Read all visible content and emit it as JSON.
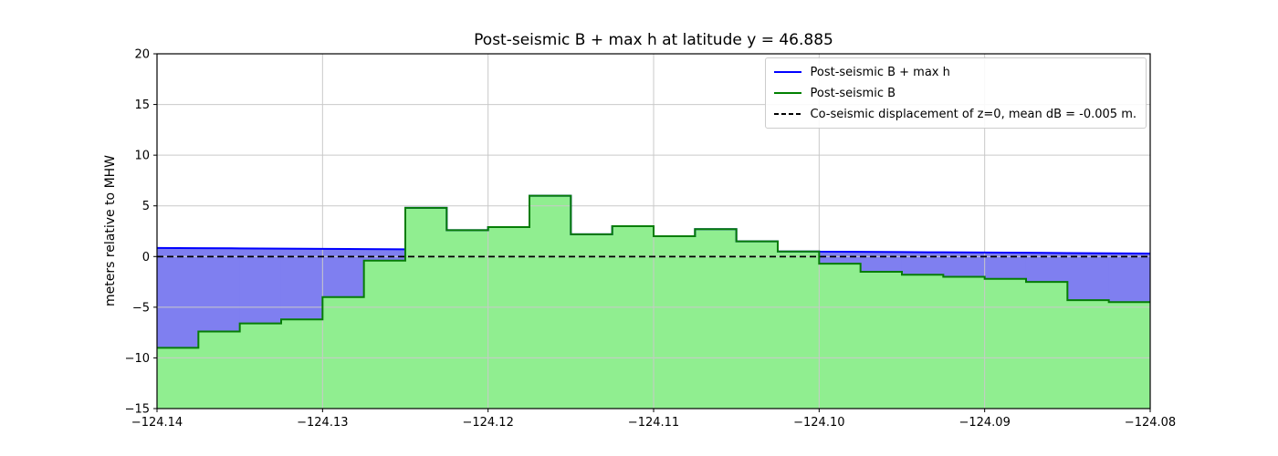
{
  "figure": {
    "background": "#ffffff"
  },
  "chart_data": {
    "type": "area",
    "title": "Post-seismic B + max h at latitude y = 46.885",
    "xlabel": "",
    "ylabel": "meters relative to MHW",
    "xlim": [
      -124.14,
      -124.08
    ],
    "ylim": [
      -15,
      20
    ],
    "grid": true,
    "grid_color": "#c9c9c9",
    "xtick_values": [
      -124.14,
      -124.13,
      -124.12,
      -124.11,
      -124.1,
      -124.09,
      -124.08
    ],
    "xtick_labels": [
      "−124.14",
      "−124.13",
      "−124.12",
      "−124.11",
      "−124.10",
      "−124.09",
      "−124.08"
    ],
    "ytick_values": [
      -15,
      -10,
      -5,
      0,
      5,
      10,
      15,
      20
    ],
    "ytick_labels": [
      "−15",
      "−10",
      "−5",
      "0",
      "5",
      "10",
      "15",
      "20"
    ],
    "legend": {
      "position": "upper right",
      "entries": [
        {
          "label": "Post-seismic B + max h",
          "color": "#0000ff",
          "dash": "solid"
        },
        {
          "label": "Post-seismic B",
          "color": "#008000",
          "dash": "solid"
        },
        {
          "label": "Co-seismic displacement of z=0, mean dB = -0.005 m.",
          "color": "#000000",
          "dash": "dashed"
        }
      ]
    },
    "series": [
      {
        "name": "Post-seismic B",
        "type": "step_fill",
        "line_color": "#067d06",
        "fill_color": "#90ee90",
        "edges": [
          -124.14,
          -124.1375,
          -124.135,
          -124.1325,
          -124.13,
          -124.1275,
          -124.125,
          -124.1225,
          -124.12,
          -124.1175,
          -124.115,
          -124.1125,
          -124.11,
          -124.1075,
          -124.105,
          -124.1025,
          -124.1,
          -124.0975,
          -124.095,
          -124.0925,
          -124.09,
          -124.0875,
          -124.085,
          -124.0825,
          -124.08
        ],
        "values": [
          -9.0,
          -7.4,
          -6.6,
          -6.2,
          -4.0,
          -0.4,
          4.8,
          2.6,
          2.9,
          6.0,
          2.2,
          3.0,
          2.0,
          2.7,
          1.5,
          0.5,
          -0.7,
          -1.5,
          -1.8,
          -2.0,
          -2.2,
          -2.5,
          -4.3,
          -4.5
        ]
      },
      {
        "name": "Post-seismic B + max h",
        "type": "water_line",
        "line_color": "#0000ff",
        "fill_color": "#7f7ff0",
        "x": [
          -124.14,
          -124.08
        ],
        "values": [
          0.85,
          0.3
        ]
      },
      {
        "name": "Co-seismic displacement of z=0",
        "type": "hline",
        "line_color": "#000000",
        "style": "dashed",
        "y": -0.005
      }
    ]
  }
}
